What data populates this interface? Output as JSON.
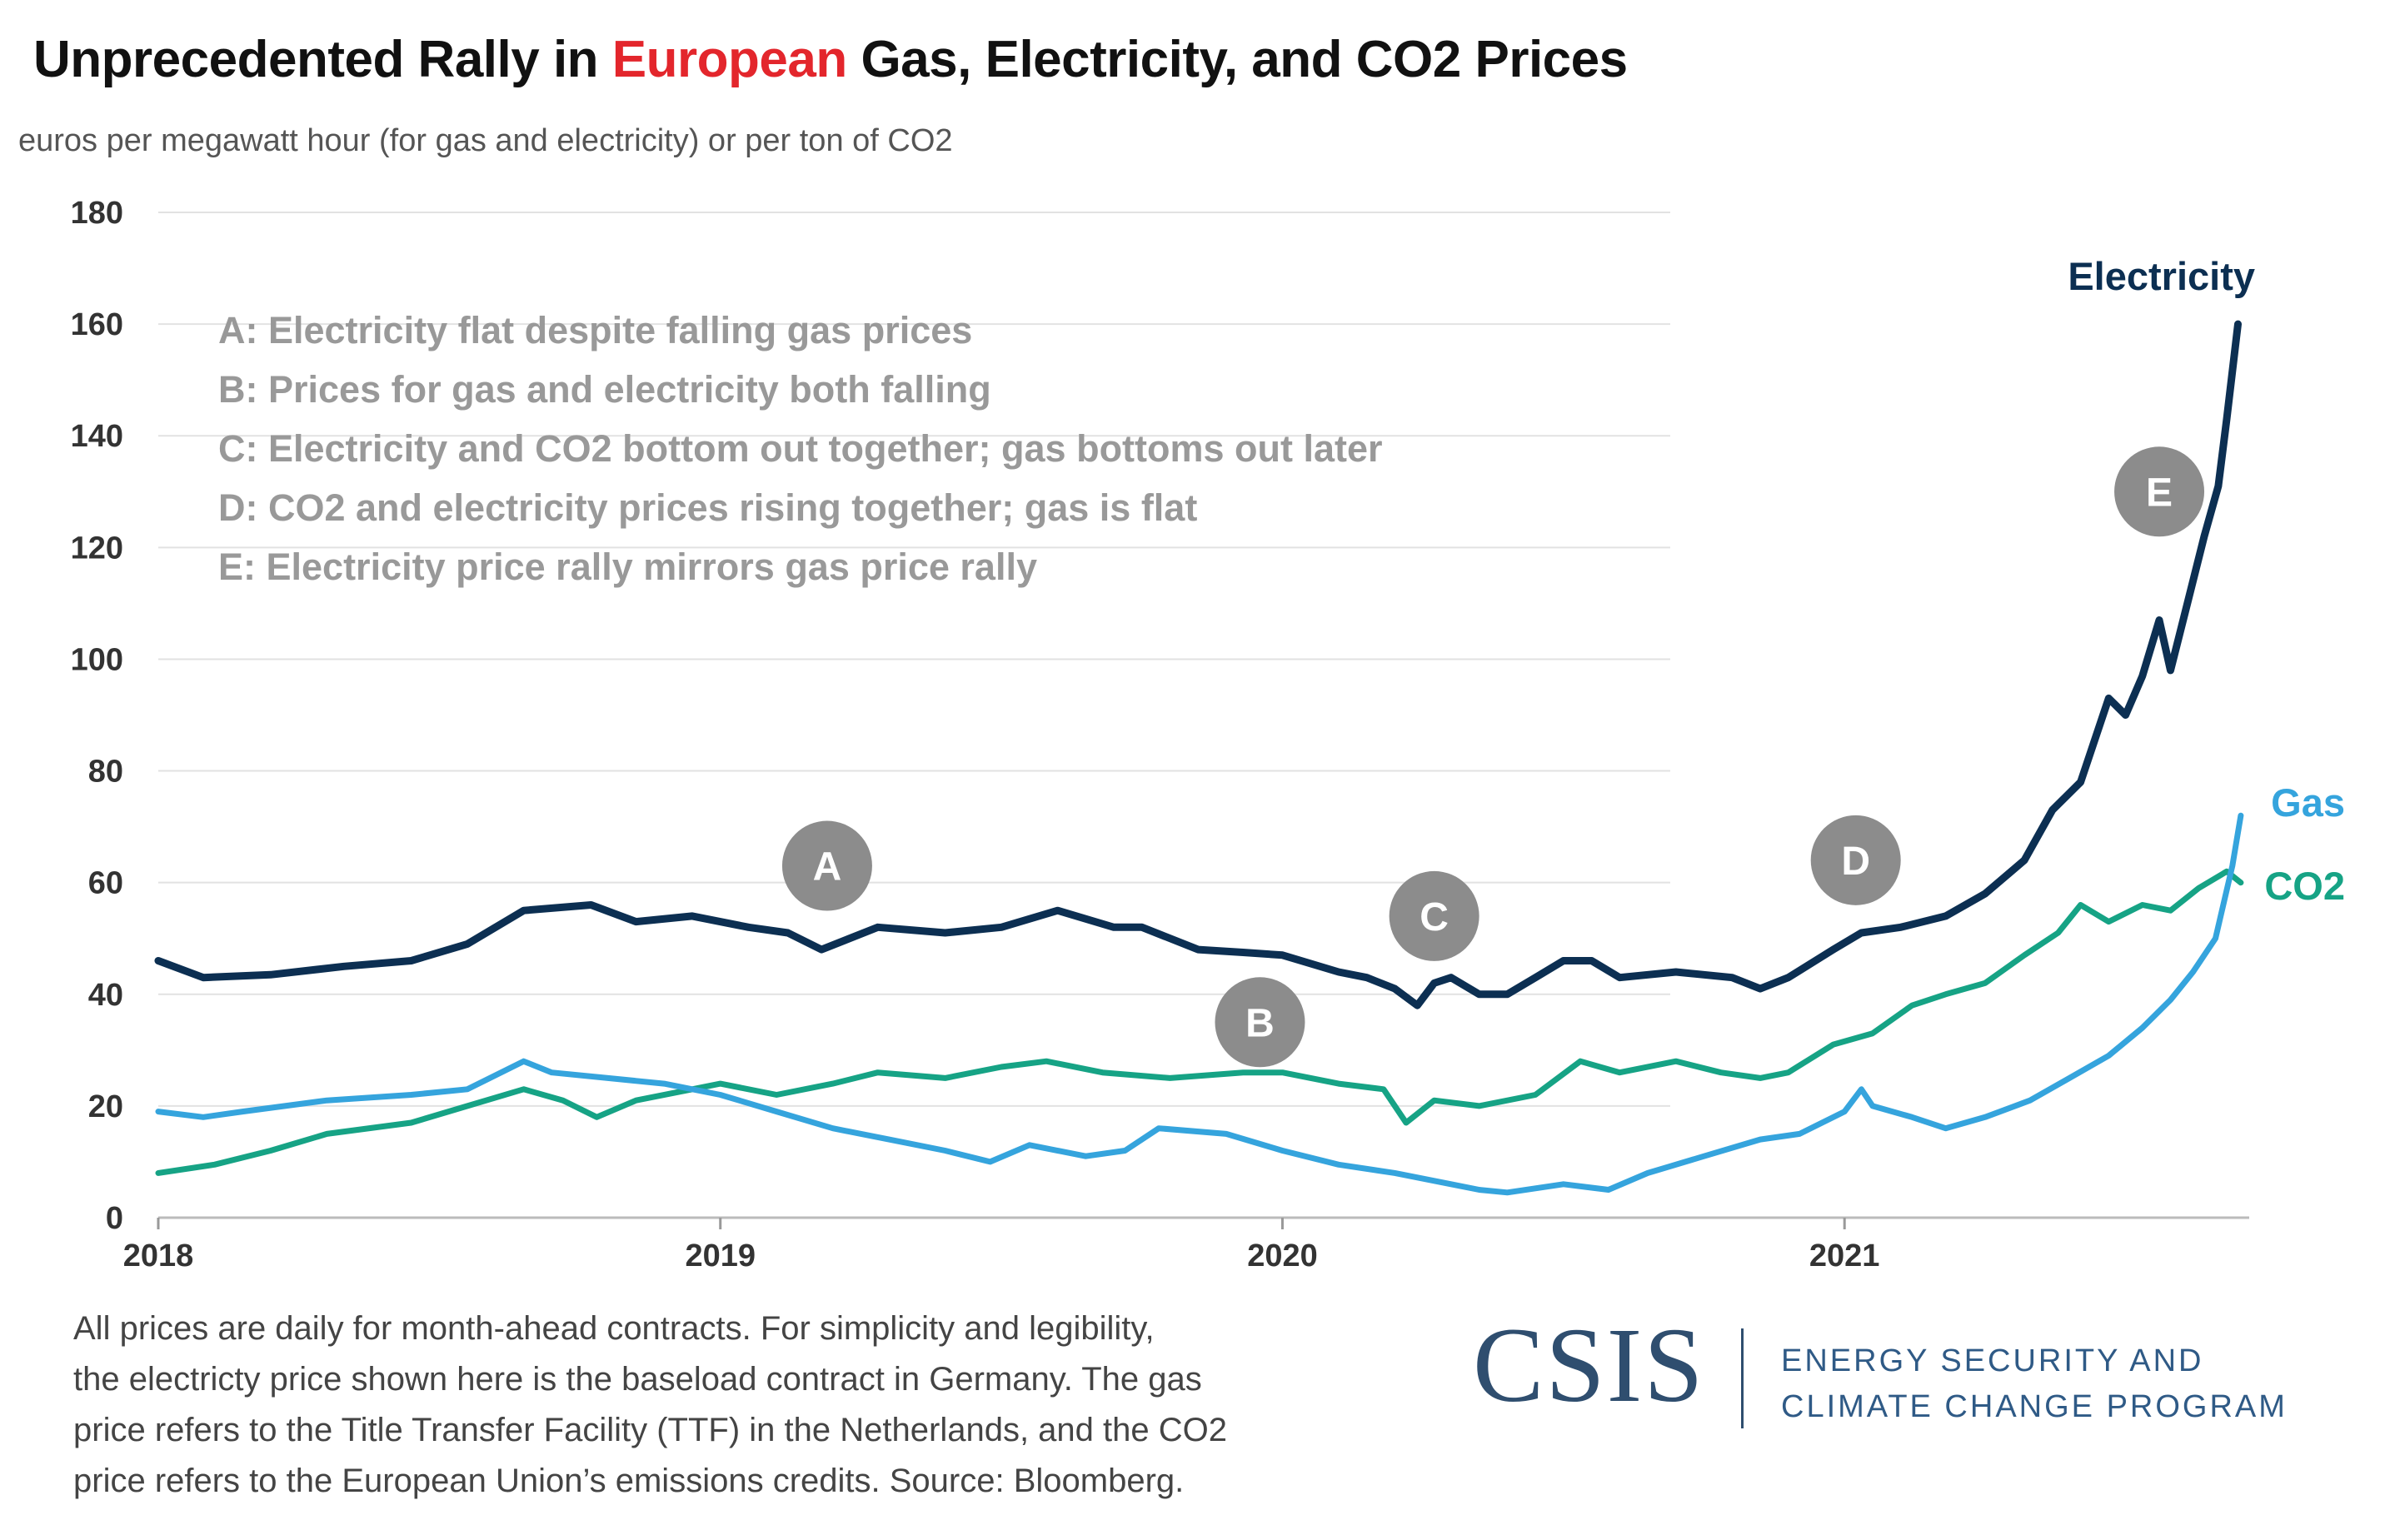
{
  "header": {
    "title_before": "Unprecedented Rally in ",
    "title_highlight": "European",
    "title_after": " Gas, Electricity, and CO2 Prices",
    "subtitle": "euros per megawatt hour (for gas and electricity) or per ton of CO2"
  },
  "colors": {
    "electricity": "#0c2f52",
    "gas": "#35a4dd",
    "co2": "#16a385",
    "marker": "#8c8c8c",
    "note_text": "#999999",
    "grid": "#e2e2e2",
    "title_highlight": "#e3262c"
  },
  "notes": [
    "A: Electricity flat despite falling gas prices",
    "B: Prices for gas and electricity both falling",
    "C: Electricity and CO2 bottom out together; gas bottoms out later",
    "D: CO2 and electricity prices rising together; gas is flat",
    "E: Electricity price rally mirrors gas price rally"
  ],
  "chart_data": {
    "type": "line",
    "x_unit": "year",
    "xlim": [
      2018.0,
      2021.72
    ],
    "ylim": [
      0,
      180
    ],
    "yticks": [
      "0",
      "20",
      "40",
      "60",
      "80",
      "100",
      "120",
      "140",
      "160",
      "180"
    ],
    "xticks": [
      "2018",
      "2019",
      "2020",
      "2021"
    ],
    "grid": true,
    "legend": "direct labels at series ends",
    "series": [
      {
        "name": "Electricity",
        "points": [
          [
            2018.0,
            46
          ],
          [
            2018.08,
            43
          ],
          [
            2018.2,
            43.5
          ],
          [
            2018.33,
            45
          ],
          [
            2018.45,
            46
          ],
          [
            2018.55,
            49
          ],
          [
            2018.65,
            55
          ],
          [
            2018.77,
            56
          ],
          [
            2018.85,
            53
          ],
          [
            2018.95,
            54
          ],
          [
            2019.05,
            52
          ],
          [
            2019.12,
            51
          ],
          [
            2019.18,
            48
          ],
          [
            2019.28,
            52
          ],
          [
            2019.4,
            51
          ],
          [
            2019.5,
            52
          ],
          [
            2019.6,
            55
          ],
          [
            2019.7,
            52
          ],
          [
            2019.75,
            52
          ],
          [
            2019.85,
            48
          ],
          [
            2019.93,
            47.5
          ],
          [
            2020.0,
            47
          ],
          [
            2020.1,
            44
          ],
          [
            2020.15,
            43
          ],
          [
            2020.2,
            41
          ],
          [
            2020.24,
            38
          ],
          [
            2020.27,
            42
          ],
          [
            2020.3,
            43
          ],
          [
            2020.35,
            40
          ],
          [
            2020.4,
            40
          ],
          [
            2020.45,
            43
          ],
          [
            2020.5,
            46
          ],
          [
            2020.55,
            46
          ],
          [
            2020.6,
            43
          ],
          [
            2020.7,
            44
          ],
          [
            2020.8,
            43
          ],
          [
            2020.85,
            41
          ],
          [
            2020.9,
            43
          ],
          [
            2020.98,
            48
          ],
          [
            2021.03,
            51
          ],
          [
            2021.1,
            52
          ],
          [
            2021.18,
            54
          ],
          [
            2021.25,
            58
          ],
          [
            2021.32,
            64
          ],
          [
            2021.37,
            73
          ],
          [
            2021.42,
            78
          ],
          [
            2021.47,
            93
          ],
          [
            2021.5,
            90
          ],
          [
            2021.53,
            97
          ],
          [
            2021.56,
            107
          ],
          [
            2021.58,
            98
          ],
          [
            2021.61,
            110
          ],
          [
            2021.64,
            122
          ],
          [
            2021.665,
            131
          ],
          [
            2021.68,
            143
          ],
          [
            2021.7,
            160
          ]
        ]
      },
      {
        "name": "Gas",
        "points": [
          [
            2018.0,
            19
          ],
          [
            2018.08,
            18
          ],
          [
            2018.15,
            19
          ],
          [
            2018.3,
            21
          ],
          [
            2018.45,
            22
          ],
          [
            2018.55,
            23
          ],
          [
            2018.65,
            28
          ],
          [
            2018.7,
            26
          ],
          [
            2018.8,
            25
          ],
          [
            2018.9,
            24
          ],
          [
            2019.0,
            22
          ],
          [
            2019.1,
            19
          ],
          [
            2019.2,
            16
          ],
          [
            2019.3,
            14
          ],
          [
            2019.4,
            12
          ],
          [
            2019.48,
            10
          ],
          [
            2019.55,
            13
          ],
          [
            2019.65,
            11
          ],
          [
            2019.72,
            12
          ],
          [
            2019.78,
            16
          ],
          [
            2019.9,
            15
          ],
          [
            2020.0,
            12
          ],
          [
            2020.1,
            9.5
          ],
          [
            2020.2,
            8
          ],
          [
            2020.3,
            6
          ],
          [
            2020.35,
            5
          ],
          [
            2020.4,
            4.5
          ],
          [
            2020.5,
            6
          ],
          [
            2020.58,
            5
          ],
          [
            2020.65,
            8
          ],
          [
            2020.75,
            11
          ],
          [
            2020.85,
            14
          ],
          [
            2020.92,
            15
          ],
          [
            2021.0,
            19
          ],
          [
            2021.03,
            23
          ],
          [
            2021.05,
            20
          ],
          [
            2021.12,
            18
          ],
          [
            2021.18,
            16
          ],
          [
            2021.25,
            18
          ],
          [
            2021.33,
            21
          ],
          [
            2021.4,
            25
          ],
          [
            2021.47,
            29
          ],
          [
            2021.53,
            34
          ],
          [
            2021.58,
            39
          ],
          [
            2021.62,
            44
          ],
          [
            2021.66,
            50
          ],
          [
            2021.69,
            63
          ],
          [
            2021.705,
            72
          ]
        ]
      },
      {
        "name": "CO2",
        "points": [
          [
            2018.0,
            8
          ],
          [
            2018.1,
            9.5
          ],
          [
            2018.2,
            12
          ],
          [
            2018.3,
            15
          ],
          [
            2018.45,
            17
          ],
          [
            2018.55,
            20
          ],
          [
            2018.65,
            23
          ],
          [
            2018.72,
            21
          ],
          [
            2018.78,
            18
          ],
          [
            2018.85,
            21
          ],
          [
            2018.95,
            23
          ],
          [
            2019.0,
            24
          ],
          [
            2019.1,
            22
          ],
          [
            2019.2,
            24
          ],
          [
            2019.28,
            26
          ],
          [
            2019.4,
            25
          ],
          [
            2019.5,
            27
          ],
          [
            2019.58,
            28
          ],
          [
            2019.68,
            26
          ],
          [
            2019.8,
            25
          ],
          [
            2019.93,
            26
          ],
          [
            2020.0,
            26
          ],
          [
            2020.1,
            24
          ],
          [
            2020.18,
            23
          ],
          [
            2020.22,
            17
          ],
          [
            2020.27,
            21
          ],
          [
            2020.35,
            20
          ],
          [
            2020.45,
            22
          ],
          [
            2020.53,
            28
          ],
          [
            2020.6,
            26
          ],
          [
            2020.7,
            28
          ],
          [
            2020.78,
            26
          ],
          [
            2020.85,
            25
          ],
          [
            2020.9,
            26
          ],
          [
            2020.98,
            31
          ],
          [
            2021.05,
            33
          ],
          [
            2021.12,
            38
          ],
          [
            2021.18,
            40
          ],
          [
            2021.25,
            42
          ],
          [
            2021.32,
            47
          ],
          [
            2021.38,
            51
          ],
          [
            2021.42,
            56
          ],
          [
            2021.47,
            53
          ],
          [
            2021.53,
            56
          ],
          [
            2021.58,
            55
          ],
          [
            2021.63,
            59
          ],
          [
            2021.68,
            62
          ],
          [
            2021.705,
            60
          ]
        ]
      }
    ],
    "markers": [
      {
        "label": "A",
        "x": 2019.19,
        "y": 63
      },
      {
        "label": "B",
        "x": 2019.96,
        "y": 35
      },
      {
        "label": "C",
        "x": 2020.27,
        "y": 54
      },
      {
        "label": "D",
        "x": 2021.02,
        "y": 64
      },
      {
        "label": "E",
        "x": 2021.56,
        "y": 130
      }
    ]
  },
  "footnote": [
    "All prices are daily for month-ahead contracts. For simplicity and legibility,",
    "the electricty price shown here is the baseload contract in Germany. The gas",
    "price refers to the Title Transfer Facility (TTF) in the Netherlands, and the CO2",
    "price refers to the European Union’s emissions credits. Source: Bloomberg."
  ],
  "logo": {
    "word": "CSIS",
    "program_line1": "ENERGY SECURITY AND",
    "program_line2": "CLIMATE CHANGE PROGRAM"
  }
}
